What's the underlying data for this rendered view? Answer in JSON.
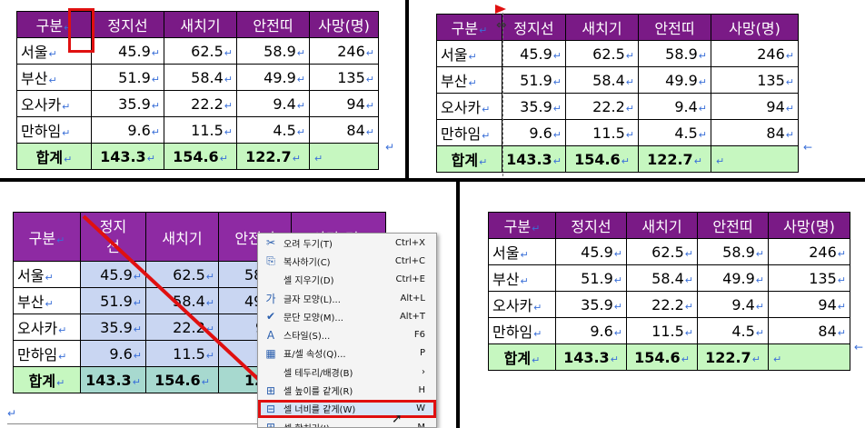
{
  "table": {
    "headers": [
      "구분",
      "정지선",
      "새치기",
      "안전띠",
      "사망(명)"
    ],
    "rows": [
      {
        "name": "서울",
        "v": [
          "45.9",
          "62.5",
          "58.9",
          "246"
        ]
      },
      {
        "name": "부산",
        "v": [
          "51.9",
          "58.4",
          "49.9",
          "135"
        ]
      },
      {
        "name": "오사카",
        "v": [
          "35.9",
          "22.2",
          "9.4",
          "94"
        ]
      },
      {
        "name": "만하임",
        "v": [
          "9.6",
          "11.5",
          "4.5",
          "84"
        ]
      }
    ],
    "sum": {
      "label": "합계",
      "v": [
        "143.3",
        "154.6",
        "122.7",
        ""
      ]
    }
  },
  "panel3": {
    "header_col2_line1": "정지",
    "header_col2_line2": "선",
    "header_col4_partial": "안전띠",
    "header_col5_partial": "사망(명)",
    "col4_partial": [
      "58",
      "49",
      "9",
      "",
      "12"
    ]
  },
  "marks": {
    "return": "↵",
    "paragraph": "↵",
    "arrow": "←"
  },
  "context_menu": {
    "items": [
      {
        "icon": "✂",
        "label": "오려 두기(T)",
        "shortcut": "Ctrl+X"
      },
      {
        "icon": "⎘",
        "label": "복사하기(C)",
        "shortcut": "Ctrl+C"
      },
      {
        "icon": "",
        "label": "셀 지우기(D)",
        "shortcut": "Ctrl+E"
      },
      {
        "icon": "가",
        "label": "글자 모양(L)...",
        "shortcut": "Alt+L"
      },
      {
        "icon": "✔",
        "label": "문단 모양(M)...",
        "shortcut": "Alt+T"
      },
      {
        "icon": "A",
        "label": "스타일(S)...",
        "shortcut": "F6"
      },
      {
        "icon": "▦",
        "label": "표/셀 속성(Q)...",
        "shortcut": "P"
      },
      {
        "icon": "",
        "label": "셀 테두리/배경(B)",
        "shortcut": "›"
      },
      {
        "icon": "⊞",
        "label": "셀 높이를 같게(R)",
        "shortcut": "H"
      },
      {
        "icon": "⊟",
        "label": "셀 너비를 같게(W)",
        "shortcut": "W"
      },
      {
        "icon": "⊞",
        "label": "셀 합치기(J)",
        "shortcut": "M"
      }
    ],
    "highlighted_index": 9
  },
  "colors": {
    "header": "#7a1a86",
    "sum_row": "#c6f7c0",
    "annotation": "#e01010"
  }
}
